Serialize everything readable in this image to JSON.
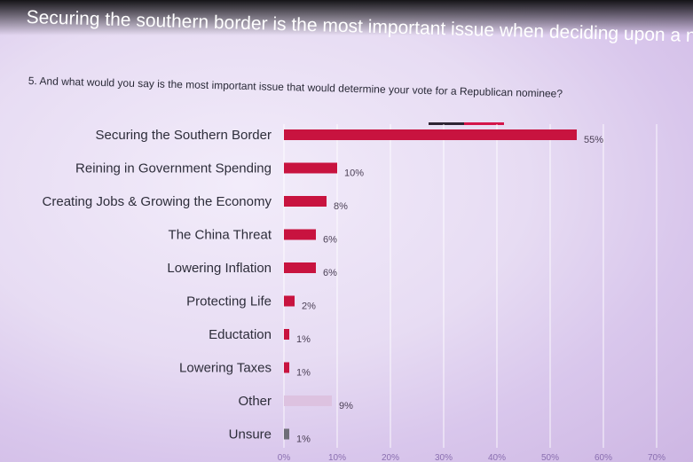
{
  "slide": {
    "title": "Securing the southern border is the most important issue when deciding upon a nominee.",
    "question": "5. And what would you say is the most important issue that would determine your vote for a Republican nominee?"
  },
  "colors": {
    "bar_primary": "#c8133f",
    "bar_other": "#ddc2e0",
    "bar_unsure": "#6e6e78",
    "legend_dark": "#2e2433",
    "legend_red": "#d4154a",
    "grid": "#ffffff"
  },
  "chart_data": {
    "type": "bar",
    "orientation": "horizontal",
    "categories": [
      "Securing the Southern Border",
      "Reining in Government Spending",
      "Creating Jobs & Growing the Economy",
      "The China Threat",
      "Lowering Inflation",
      "Protecting Life",
      "Eductation",
      "Lowering Taxes",
      "Other",
      "Unsure"
    ],
    "values": [
      55,
      10,
      8,
      6,
      6,
      2,
      1,
      1,
      9,
      1
    ],
    "value_labels": [
      "55%",
      "10%",
      "8%",
      "6%",
      "6%",
      "2%",
      "1%",
      "1%",
      "9%",
      "1%"
    ],
    "x_ticks": [
      "0%",
      "10%",
      "20%",
      "30%",
      "40%",
      "50%",
      "60%",
      "70%"
    ],
    "xlim": [
      0,
      70
    ],
    "grid": true
  }
}
